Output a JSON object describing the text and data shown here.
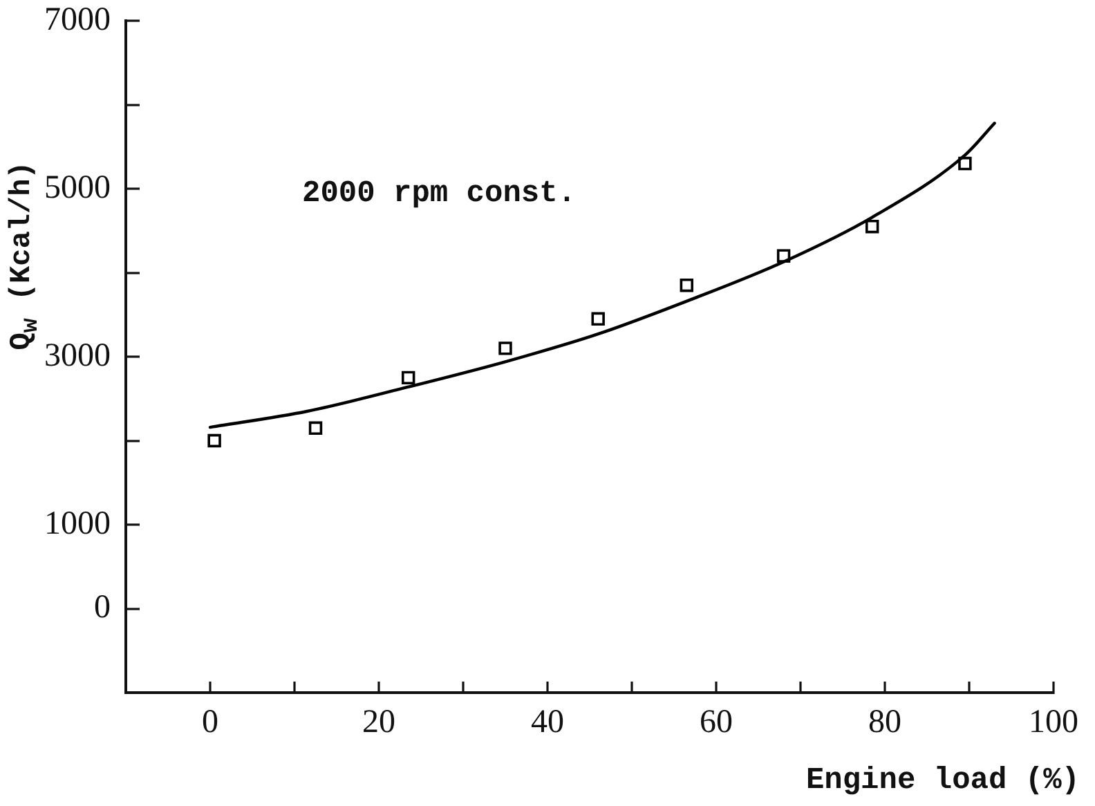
{
  "chart_data": {
    "type": "scatter",
    "xlabel": "Engine load (%)",
    "ylabel": "Q$_{w}$ (Kcal/h)",
    "annotations": [
      "2000 rpm const."
    ],
    "xlim": [
      -10,
      100
    ],
    "ylim": [
      -1000,
      7000
    ],
    "xticks": [
      0,
      {
        "value": 10,
        "label": null
      },
      20,
      {
        "value": 30,
        "label": null
      },
      40,
      {
        "value": 50,
        "label": null
      },
      60,
      {
        "value": 70,
        "label": null
      },
      80,
      {
        "value": 90,
        "label": null
      },
      100
    ],
    "yticks": [
      0,
      1000,
      {
        "value": 2000,
        "label": null
      },
      3000,
      {
        "value": 4000,
        "label": null
      },
      5000,
      {
        "value": 6000,
        "label": null
      },
      7000
    ],
    "series": [
      {
        "type": "scatter",
        "color": "#000000",
        "marker": "square",
        "x": [
          0.5,
          12.5,
          23.5,
          35,
          46,
          56.5,
          68,
          78.5,
          89.5
        ],
        "values": [
          2000,
          2150,
          2750,
          3100,
          3450,
          3850,
          4200,
          4550,
          5300
        ]
      },
      {
        "type": "line",
        "color": "#000000",
        "marker": "none",
        "x": [
          0,
          11.5,
          23.5,
          35,
          46,
          57,
          68,
          78.5,
          89.5,
          93
        ],
        "values": [
          2160,
          2350,
          2640,
          2940,
          3270,
          3680,
          4130,
          4660,
          5400,
          5780
        ]
      }
    ]
  }
}
